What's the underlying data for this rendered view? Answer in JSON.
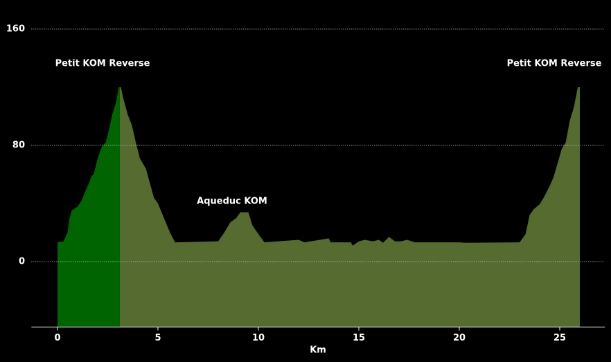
{
  "chart_data": {
    "type": "area",
    "xlabel": "Km",
    "annotations": [
      "Petit KOM Reverse",
      "Aqueduc KOM",
      "Petit KOM Reverse"
    ],
    "xlim": [
      -1.3,
      27.25
    ],
    "xticks": [
      0,
      5,
      10,
      15,
      20,
      25
    ],
    "ylim": [
      -45,
      170
    ],
    "yticks": [
      0,
      80,
      160
    ],
    "grid": true,
    "series": [
      {
        "color": "#006400",
        "x": [
          0,
          0.3,
          0.5,
          0.6,
          0.7,
          1.0,
          1.2,
          1.4,
          1.6,
          1.7,
          1.8,
          2.0,
          2.2,
          2.4,
          2.6,
          2.7,
          2.9,
          3.05,
          3.1
        ],
        "values": [
          13.3,
          14,
          20,
          30,
          35,
          38,
          42,
          49,
          55,
          59,
          60,
          71,
          79,
          82,
          93,
          100,
          109,
          120,
          120
        ]
      },
      {
        "color": "#556b2f",
        "x": [
          3.1,
          3.15,
          3.3,
          3.5,
          3.7,
          3.9,
          4.1,
          4.4,
          4.6,
          4.8,
          5.0,
          5.3,
          5.6,
          5.85,
          8.0,
          8.3,
          8.6,
          8.9,
          9.1,
          9.5,
          9.7,
          10.0,
          10.3,
          12.0,
          12.3,
          13.5,
          13.6,
          14.6,
          14.7,
          15.0,
          15.3,
          15.7,
          16.0,
          16.2,
          16.5,
          16.8,
          17.1,
          17.4,
          17.8,
          20.0,
          20.3,
          23.0,
          23.3,
          23.5,
          23.7,
          24.0,
          24.2,
          24.5,
          24.7,
          24.9,
          25.1,
          25.3,
          25.5,
          25.7,
          25.9,
          26.0
        ],
        "values": [
          120,
          120,
          111,
          101,
          94,
          82,
          71,
          64,
          54,
          44,
          40,
          30,
          20,
          13.3,
          14,
          20,
          27,
          30,
          34,
          34,
          25,
          19,
          13.3,
          15,
          13.3,
          16,
          13.3,
          13.3,
          11,
          14,
          15,
          14,
          15,
          13,
          17,
          14,
          14,
          15,
          13.3,
          13.3,
          13,
          13.3,
          19,
          32,
          36,
          39.5,
          44,
          52,
          58.5,
          68,
          77.6,
          82,
          97,
          106,
          120,
          120
        ]
      }
    ]
  }
}
